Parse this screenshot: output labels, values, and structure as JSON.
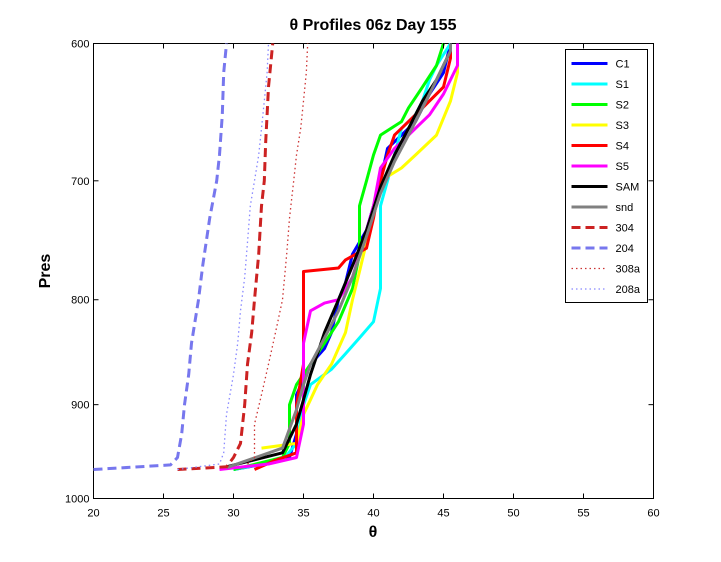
{
  "chart_data": {
    "type": "line",
    "title": "θ Profiles 06z Day 155",
    "xlabel": "θ",
    "ylabel": "Pres",
    "xlim": [
      20,
      60
    ],
    "ylim": [
      600,
      1000
    ],
    "y_reversed": true,
    "y_scale": "log",
    "xticks": [
      20,
      25,
      30,
      35,
      40,
      45,
      50,
      55,
      60
    ],
    "yticks": [
      600,
      700,
      800,
      900,
      1000
    ],
    "grid": false,
    "legend_position": "top-right",
    "series": [
      {
        "name": "C1",
        "color": "#0000ff",
        "style": "solid",
        "points": [
          [
            30.0,
            968
          ],
          [
            33.0,
            960
          ],
          [
            34.0,
            955
          ],
          [
            34.5,
            930
          ],
          [
            34.5,
            890
          ],
          [
            35.5,
            860
          ],
          [
            36.5,
            845
          ],
          [
            37.0,
            830
          ],
          [
            37.5,
            800
          ],
          [
            38.0,
            785
          ],
          [
            38.5,
            760
          ],
          [
            39.5,
            740
          ],
          [
            40.0,
            720
          ],
          [
            40.5,
            700
          ],
          [
            41.0,
            675
          ],
          [
            42.0,
            665
          ],
          [
            43.0,
            655
          ],
          [
            44.0,
            635
          ],
          [
            45.0,
            620
          ],
          [
            45.5,
            600
          ]
        ]
      },
      {
        "name": "S1",
        "color": "#00ffff",
        "style": "solid",
        "points": [
          [
            30.0,
            968
          ],
          [
            33.5,
            958
          ],
          [
            34.5,
            940
          ],
          [
            35.0,
            900
          ],
          [
            35.5,
            880
          ],
          [
            37.0,
            865
          ],
          [
            38.0,
            850
          ],
          [
            39.0,
            835
          ],
          [
            40.0,
            820
          ],
          [
            40.5,
            790
          ],
          [
            40.5,
            760
          ],
          [
            40.5,
            720
          ],
          [
            41.0,
            700
          ],
          [
            41.5,
            680
          ],
          [
            42.0,
            660
          ],
          [
            43.0,
            650
          ],
          [
            43.5,
            640
          ],
          [
            44.0,
            625
          ],
          [
            44.5,
            615
          ],
          [
            45.5,
            600
          ]
        ]
      },
      {
        "name": "S2",
        "color": "#00ff00",
        "style": "solid",
        "points": [
          [
            30.0,
            968
          ],
          [
            33.5,
            955
          ],
          [
            34.0,
            940
          ],
          [
            34.0,
            900
          ],
          [
            34.5,
            880
          ],
          [
            35.5,
            860
          ],
          [
            36.5,
            840
          ],
          [
            37.5,
            820
          ],
          [
            38.5,
            790
          ],
          [
            39.0,
            760
          ],
          [
            39.0,
            720
          ],
          [
            39.5,
            700
          ],
          [
            40.0,
            680
          ],
          [
            40.5,
            665
          ],
          [
            42.0,
            655
          ],
          [
            42.5,
            645
          ],
          [
            43.5,
            630
          ],
          [
            44.5,
            615
          ],
          [
            45.0,
            600
          ]
        ]
      },
      {
        "name": "S3",
        "color": "#ffff00",
        "style": "solid",
        "points": [
          [
            32.0,
            945
          ],
          [
            34.5,
            940
          ],
          [
            35.0,
            910
          ],
          [
            35.5,
            895
          ],
          [
            36.0,
            880
          ],
          [
            37.0,
            860
          ],
          [
            38.0,
            830
          ],
          [
            38.5,
            800
          ],
          [
            39.0,
            775
          ],
          [
            39.5,
            750
          ],
          [
            40.0,
            720
          ],
          [
            40.5,
            700
          ],
          [
            42.0,
            690
          ],
          [
            43.0,
            680
          ],
          [
            44.5,
            665
          ],
          [
            45.5,
            640
          ],
          [
            46.0,
            620
          ],
          [
            46.0,
            600
          ]
        ]
      },
      {
        "name": "S4",
        "color": "#ff0000",
        "style": "solid",
        "points": [
          [
            31.5,
            968
          ],
          [
            33.0,
            958
          ],
          [
            34.5,
            950
          ],
          [
            34.5,
            900
          ],
          [
            35.0,
            860
          ],
          [
            35.0,
            800
          ],
          [
            35.0,
            775
          ],
          [
            37.5,
            772
          ],
          [
            38.0,
            765
          ],
          [
            39.5,
            755
          ],
          [
            40.0,
            730
          ],
          [
            40.5,
            700
          ],
          [
            41.0,
            680
          ],
          [
            41.5,
            665
          ],
          [
            42.5,
            655
          ],
          [
            43.5,
            645
          ],
          [
            45.0,
            630
          ],
          [
            45.5,
            610
          ],
          [
            45.5,
            600
          ]
        ]
      },
      {
        "name": "S5",
        "color": "#ff00ff",
        "style": "solid",
        "points": [
          [
            29.0,
            968
          ],
          [
            32.5,
            962
          ],
          [
            34.5,
            955
          ],
          [
            35.0,
            920
          ],
          [
            35.0,
            880
          ],
          [
            35.0,
            840
          ],
          [
            35.5,
            810
          ],
          [
            36.5,
            803
          ],
          [
            37.5,
            800
          ],
          [
            38.5,
            780
          ],
          [
            39.0,
            760
          ],
          [
            39.5,
            740
          ],
          [
            40.0,
            720
          ],
          [
            40.5,
            690
          ],
          [
            41.5,
            675
          ],
          [
            42.5,
            665
          ],
          [
            44.0,
            650
          ],
          [
            45.0,
            635
          ],
          [
            46.0,
            615
          ],
          [
            46.0,
            600
          ]
        ]
      },
      {
        "name": "SAM",
        "color": "#000000",
        "style": "solid",
        "points": [
          [
            29.5,
            965
          ],
          [
            33.5,
            950
          ],
          [
            34.5,
            920
          ],
          [
            35.0,
            895
          ],
          [
            35.5,
            870
          ],
          [
            36.0,
            850
          ],
          [
            36.5,
            830
          ],
          [
            37.5,
            800
          ],
          [
            38.5,
            770
          ],
          [
            39.5,
            740
          ],
          [
            40.5,
            705
          ],
          [
            41.5,
            680
          ],
          [
            42.5,
            660
          ],
          [
            43.5,
            640
          ],
          [
            44.5,
            625
          ],
          [
            45.5,
            605
          ],
          [
            45.5,
            600
          ]
        ]
      },
      {
        "name": "snd",
        "color": "#808080",
        "style": "solid",
        "points": [
          [
            29.5,
            966
          ],
          [
            33.5,
            945
          ],
          [
            34.5,
            905
          ],
          [
            35.0,
            880
          ],
          [
            35.5,
            860
          ],
          [
            36.5,
            835
          ],
          [
            37.5,
            810
          ],
          [
            38.5,
            780
          ],
          [
            39.5,
            745
          ],
          [
            40.5,
            710
          ],
          [
            41.5,
            685
          ],
          [
            42.5,
            665
          ],
          [
            43.5,
            645
          ],
          [
            44.5,
            625
          ],
          [
            45.5,
            605
          ],
          [
            45.5,
            600
          ]
        ]
      },
      {
        "name": "304",
        "color": "#cc2222",
        "style": "dashed",
        "points": [
          [
            26.0,
            968
          ],
          [
            29.5,
            965
          ],
          [
            30.0,
            955
          ],
          [
            30.5,
            940
          ],
          [
            30.8,
            900
          ],
          [
            31.0,
            860
          ],
          [
            31.3,
            830
          ],
          [
            31.5,
            800
          ],
          [
            31.8,
            760
          ],
          [
            32.0,
            720
          ],
          [
            32.2,
            700
          ],
          [
            32.3,
            670
          ],
          [
            32.4,
            650
          ],
          [
            32.5,
            630
          ],
          [
            32.7,
            610
          ],
          [
            32.8,
            600
          ]
        ]
      },
      {
        "name": "204",
        "color": "#7777ee",
        "style": "dashed",
        "points": [
          [
            20.0,
            968
          ],
          [
            25.5,
            963
          ],
          [
            26.0,
            955
          ],
          [
            26.3,
            930
          ],
          [
            26.5,
            900
          ],
          [
            26.8,
            870
          ],
          [
            27.0,
            840
          ],
          [
            27.5,
            800
          ],
          [
            27.8,
            770
          ],
          [
            28.3,
            730
          ],
          [
            28.8,
            700
          ],
          [
            29.0,
            680
          ],
          [
            29.2,
            650
          ],
          [
            29.3,
            620
          ],
          [
            29.5,
            600
          ]
        ]
      },
      {
        "name": "308a",
        "color": "#cc3333",
        "style": "dotted",
        "points": [
          [
            31.0,
            962
          ],
          [
            31.5,
            955
          ],
          [
            31.5,
            920
          ],
          [
            32.0,
            890
          ],
          [
            32.5,
            860
          ],
          [
            33.0,
            830
          ],
          [
            33.5,
            800
          ],
          [
            33.8,
            760
          ],
          [
            34.0,
            730
          ],
          [
            34.3,
            700
          ],
          [
            34.5,
            680
          ],
          [
            34.8,
            660
          ],
          [
            35.0,
            640
          ],
          [
            35.2,
            620
          ],
          [
            35.3,
            600
          ]
        ]
      },
      {
        "name": "208a",
        "color": "#8888ff",
        "style": "dotted",
        "points": [
          [
            26.0,
            968
          ],
          [
            29.0,
            962
          ],
          [
            29.3,
            950
          ],
          [
            29.5,
            910
          ],
          [
            30.0,
            870
          ],
          [
            30.3,
            840
          ],
          [
            30.5,
            810
          ],
          [
            30.8,
            780
          ],
          [
            31.0,
            750
          ],
          [
            31.2,
            720
          ],
          [
            31.5,
            700
          ],
          [
            31.8,
            680
          ],
          [
            32.0,
            660
          ],
          [
            32.2,
            640
          ],
          [
            32.4,
            620
          ],
          [
            32.5,
            600
          ]
        ]
      }
    ]
  }
}
